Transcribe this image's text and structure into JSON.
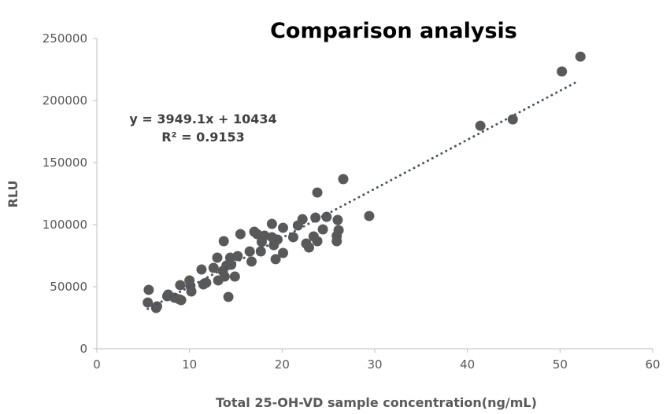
{
  "chart_data": {
    "type": "scatter",
    "title": "Comparison analysis",
    "xlabel": "Total 25-OH-VD  sample concentration(ng/mL)",
    "ylabel": "RLU",
    "xlim": [
      0,
      60
    ],
    "ylim": [
      0,
      250000
    ],
    "xticks": [
      0,
      10,
      20,
      30,
      40,
      50,
      60
    ],
    "yticks": [
      0,
      50000,
      100000,
      150000,
      200000,
      250000
    ],
    "grid": false,
    "colors": {
      "points": "#595959",
      "trendline": "#44546a"
    },
    "trendline": {
      "type": "linear",
      "slope": 3949.1,
      "intercept": 10434,
      "x_range": [
        5.5,
        52
      ],
      "equation": "y = 3949.1x + 10434",
      "r2_label": "R² = 0.9153"
    },
    "points": [
      [
        5.6,
        47500
      ],
      [
        5.5,
        37300
      ],
      [
        6.5,
        34200
      ],
      [
        6.4,
        32900
      ],
      [
        7.6,
        42400
      ],
      [
        7.7,
        43700
      ],
      [
        8.4,
        41100
      ],
      [
        8.9,
        39900
      ],
      [
        9.1,
        39200
      ],
      [
        9.0,
        51300
      ],
      [
        10.0,
        55100
      ],
      [
        10.1,
        50600
      ],
      [
        10.2,
        46200
      ],
      [
        11.3,
        63900
      ],
      [
        11.5,
        51900
      ],
      [
        11.8,
        53200
      ],
      [
        12.6,
        65200
      ],
      [
        13.0,
        73400
      ],
      [
        13.1,
        55100
      ],
      [
        13.7,
        86700
      ],
      [
        13.6,
        62700
      ],
      [
        13.8,
        58200
      ],
      [
        14.0,
        67100
      ],
      [
        14.2,
        41800
      ],
      [
        14.4,
        73400
      ],
      [
        14.5,
        67700
      ],
      [
        14.9,
        58200
      ],
      [
        15.2,
        74700
      ],
      [
        15.5,
        92400
      ],
      [
        16.5,
        78500
      ],
      [
        16.7,
        70300
      ],
      [
        17.0,
        94300
      ],
      [
        17.3,
        92400
      ],
      [
        17.7,
        78500
      ],
      [
        17.8,
        86100
      ],
      [
        18.1,
        91100
      ],
      [
        18.9,
        89900
      ],
      [
        18.9,
        100600
      ],
      [
        19.1,
        83500
      ],
      [
        19.3,
        72200
      ],
      [
        19.5,
        88000
      ],
      [
        20.1,
        97500
      ],
      [
        20.1,
        77200
      ],
      [
        21.2,
        89900
      ],
      [
        21.7,
        99400
      ],
      [
        22.2,
        104400
      ],
      [
        22.6,
        84800
      ],
      [
        22.9,
        81600
      ],
      [
        23.4,
        90500
      ],
      [
        23.6,
        105700
      ],
      [
        23.8,
        125900
      ],
      [
        23.8,
        86700
      ],
      [
        24.4,
        96200
      ],
      [
        24.8,
        106300
      ],
      [
        26.0,
        103800
      ],
      [
        25.9,
        86700
      ],
      [
        26.1,
        95600
      ],
      [
        25.9,
        91000
      ],
      [
        26.6,
        136700
      ],
      [
        29.4,
        107000
      ],
      [
        41.4,
        179700
      ],
      [
        44.9,
        184800
      ],
      [
        50.2,
        223400
      ],
      [
        52.2,
        235400
      ]
    ]
  }
}
